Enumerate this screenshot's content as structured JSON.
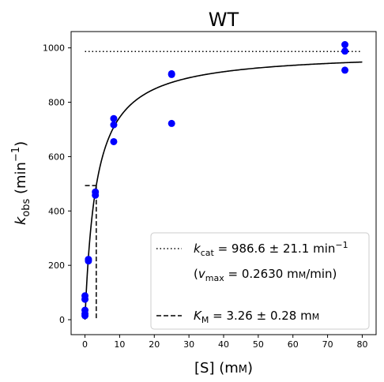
{
  "chart_data": {
    "type": "scatter",
    "title": "WT",
    "xlabel": {
      "main": "[S] (m",
      "small": "M",
      "tail": ")"
    },
    "ylabel": {
      "k": "k",
      "sub": "obs",
      "unit_pre": " (min",
      "sup": "−1",
      "unit_post": ")"
    },
    "xlim": [
      -4,
      84
    ],
    "ylim": [
      -55,
      1060
    ],
    "x_ticks": [
      0,
      10,
      20,
      30,
      40,
      50,
      60,
      70,
      80
    ],
    "x_tick_labels": [
      "0",
      "10",
      "20",
      "30",
      "40",
      "50",
      "60",
      "70",
      "80"
    ],
    "y_ticks": [
      0,
      200,
      400,
      600,
      800,
      1000
    ],
    "y_tick_labels": [
      "0",
      "200",
      "400",
      "600",
      "800",
      "1000"
    ],
    "grid": false,
    "colors": {
      "points": "#0000ff",
      "lines": "#000000"
    },
    "points": [
      {
        "x": 0,
        "y": 15
      },
      {
        "x": 0,
        "y": 22
      },
      {
        "x": 0,
        "y": 35
      },
      {
        "x": 0,
        "y": 75
      },
      {
        "x": 0,
        "y": 88
      },
      {
        "x": 1,
        "y": 216
      },
      {
        "x": 1,
        "y": 222
      },
      {
        "x": 3,
        "y": 458
      },
      {
        "x": 3,
        "y": 470
      },
      {
        "x": 8.3,
        "y": 655
      },
      {
        "x": 8.3,
        "y": 717
      },
      {
        "x": 8.3,
        "y": 740
      },
      {
        "x": 25,
        "y": 722
      },
      {
        "x": 25,
        "y": 902
      },
      {
        "x": 25,
        "y": 905
      },
      {
        "x": 75,
        "y": 918
      },
      {
        "x": 75,
        "y": 988
      },
      {
        "x": 75,
        "y": 1012
      }
    ],
    "fit": {
      "model": "michaelis-menten",
      "kcat": 986.6,
      "km": 3.26
    },
    "kcat_line": {
      "x": [
        0,
        80
      ],
      "y": 986.6,
      "style": "dotted"
    },
    "km_line": {
      "x": 3.26,
      "y_half": 493.3,
      "x_start": 0,
      "style": "dashed"
    },
    "legend": {
      "placement": "lower-right",
      "kcat": {
        "k": "k",
        "sub": "cat",
        "value": " = 986.6 ± 21.1 min",
        "sup": "−1"
      },
      "vmax": {
        "open": "(",
        "v": "v",
        "sub": "max",
        "value": " = 0.2630 m",
        "small": "M",
        "tail": "/min)"
      },
      "km": {
        "k": "K",
        "sub": "M",
        "value": " = 3.26 ± 0.28 m",
        "small": "M"
      }
    }
  }
}
